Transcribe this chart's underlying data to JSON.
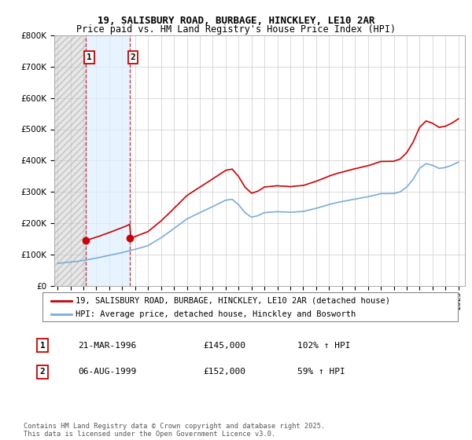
{
  "title": "19, SALISBURY ROAD, BURBAGE, HINCKLEY, LE10 2AR",
  "subtitle": "Price paid vs. HM Land Registry's House Price Index (HPI)",
  "legend_line1": "19, SALISBURY ROAD, BURBAGE, HINCKLEY, LE10 2AR (detached house)",
  "legend_line2": "HPI: Average price, detached house, Hinckley and Bosworth",
  "transaction1_label": "1",
  "transaction1_date": "21-MAR-1996",
  "transaction1_price": "£145,000",
  "transaction1_hpi": "102% ↑ HPI",
  "transaction2_label": "2",
  "transaction2_date": "06-AUG-1999",
  "transaction2_price": "£152,000",
  "transaction2_hpi": "59% ↑ HPI",
  "transaction1_year": 1996.21,
  "transaction1_value": 145000,
  "transaction2_year": 1999.59,
  "transaction2_value": 152000,
  "property_color": "#cc0000",
  "hpi_color": "#7aadd8",
  "vline_color": "#cc0000",
  "shade_color": "#ddeeff",
  "footer": "Contains HM Land Registry data © Crown copyright and database right 2025.\nThis data is licensed under the Open Government Licence v3.0.",
  "ylim": [
    0,
    800000
  ],
  "xlim_start": 1993.75,
  "xlim_end": 2025.5,
  "yticks": [
    0,
    100000,
    200000,
    300000,
    400000,
    500000,
    600000,
    700000,
    800000
  ]
}
